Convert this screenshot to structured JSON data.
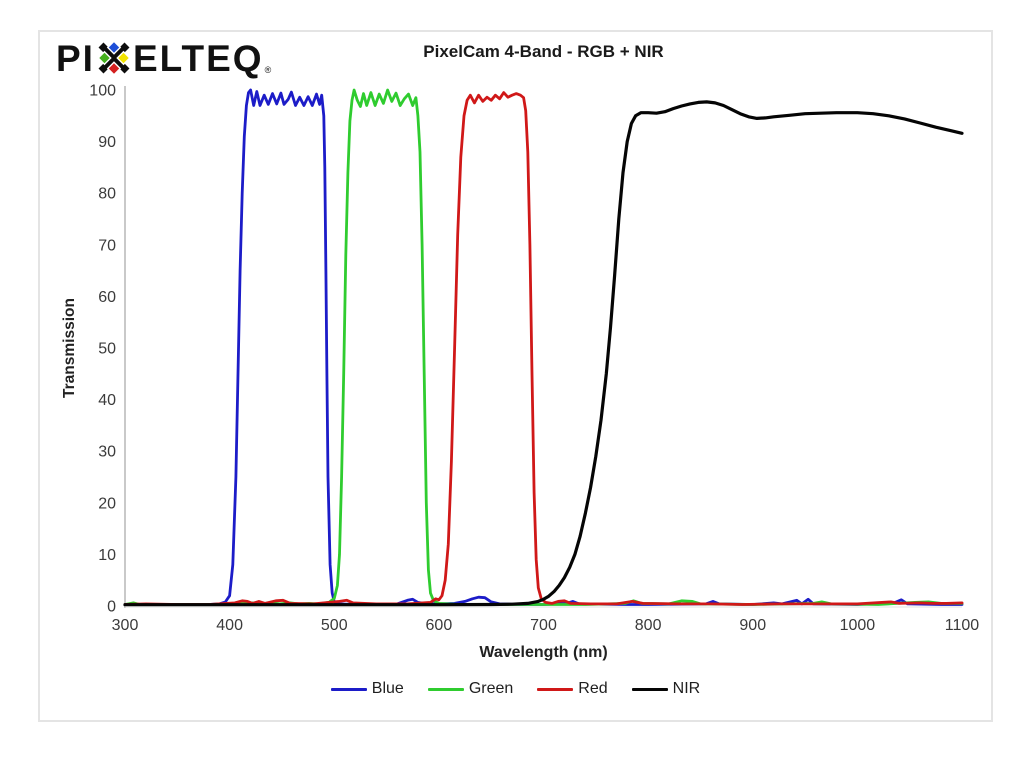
{
  "logo": {
    "prefix": "PI",
    "suffix": "ELTEQ",
    "registered": "®",
    "icon_colors": {
      "top": "#1e4fd8",
      "left": "#46b01e",
      "right": "#f2e300",
      "bottom": "#d42020",
      "x": "#0d0d0d"
    }
  },
  "chart_data": {
    "type": "line",
    "title": "PixelCam 4-Band - RGB + NIR",
    "xlabel": "Wavelength (nm)",
    "ylabel": "Transmission",
    "xlim": [
      300,
      1100
    ],
    "ylim": [
      0,
      100
    ],
    "xticks": [
      300,
      400,
      500,
      600,
      700,
      800,
      900,
      1000,
      1100
    ],
    "yticks": [
      0,
      10,
      20,
      30,
      40,
      50,
      60,
      70,
      80,
      90,
      100
    ],
    "grid": false,
    "legend_position": "bottom",
    "axis_color": "#c9c9c9",
    "tick_label_color": "#3b3b3b",
    "series": [
      {
        "name": "Blue",
        "color": "#1c1cc8",
        "width": 2.8,
        "points": [
          [
            300,
            0.3
          ],
          [
            320,
            0.3
          ],
          [
            340,
            0.3
          ],
          [
            360,
            0.3
          ],
          [
            380,
            0.3
          ],
          [
            390,
            0.4
          ],
          [
            396,
            0.8
          ],
          [
            400,
            2
          ],
          [
            403,
            8
          ],
          [
            406,
            25
          ],
          [
            408,
            45
          ],
          [
            410,
            65
          ],
          [
            412,
            80
          ],
          [
            414,
            91
          ],
          [
            416,
            97
          ],
          [
            418,
            99.5
          ],
          [
            420,
            100
          ],
          [
            423,
            97
          ],
          [
            426,
            99.7
          ],
          [
            429,
            97
          ],
          [
            433,
            99
          ],
          [
            437,
            97.2
          ],
          [
            441,
            99.3
          ],
          [
            445,
            97.3
          ],
          [
            449,
            99.4
          ],
          [
            452,
            97.2
          ],
          [
            456,
            98.2
          ],
          [
            459,
            99.6
          ],
          [
            463,
            97
          ],
          [
            467,
            98.6
          ],
          [
            471,
            97
          ],
          [
            475,
            98.7
          ],
          [
            479,
            97
          ],
          [
            483,
            99.2
          ],
          [
            486,
            97.2
          ],
          [
            488,
            99
          ],
          [
            490,
            95
          ],
          [
            491,
            85
          ],
          [
            492,
            65
          ],
          [
            493,
            45
          ],
          [
            494,
            25
          ],
          [
            496,
            8
          ],
          [
            498,
            2.5
          ],
          [
            500,
            0.8
          ],
          [
            505,
            0.4
          ],
          [
            520,
            0.3
          ],
          [
            545,
            0.3
          ],
          [
            560,
            0.4
          ],
          [
            570,
            1.1
          ],
          [
            575,
            1.3
          ],
          [
            580,
            0.7
          ],
          [
            588,
            0.4
          ],
          [
            600,
            0.4
          ],
          [
            615,
            0.5
          ],
          [
            625,
            0.9
          ],
          [
            632,
            1.4
          ],
          [
            638,
            1.7
          ],
          [
            644,
            1.6
          ],
          [
            650,
            0.8
          ],
          [
            658,
            0.4
          ],
          [
            680,
            0.3
          ],
          [
            700,
            0.3
          ],
          [
            722,
            0.5
          ],
          [
            728,
            0.9
          ],
          [
            734,
            0.4
          ],
          [
            780,
            0.3
          ],
          [
            800,
            0.3
          ],
          [
            855,
            0.4
          ],
          [
            862,
            0.9
          ],
          [
            868,
            0.4
          ],
          [
            900,
            0.3
          ],
          [
            920,
            0.6
          ],
          [
            928,
            0.4
          ],
          [
            942,
            1.1
          ],
          [
            947,
            0.4
          ],
          [
            953,
            1.3
          ],
          [
            958,
            0.4
          ],
          [
            1000,
            0.3
          ],
          [
            1035,
            0.6
          ],
          [
            1042,
            1.2
          ],
          [
            1048,
            0.4
          ],
          [
            1080,
            0.3
          ],
          [
            1100,
            0.3
          ]
        ]
      },
      {
        "name": "Green",
        "color": "#2fcc2f",
        "width": 2.8,
        "points": [
          [
            300,
            0.3
          ],
          [
            308,
            0.6
          ],
          [
            314,
            0.3
          ],
          [
            340,
            0.3
          ],
          [
            380,
            0.3
          ],
          [
            415,
            0.5
          ],
          [
            422,
            0.6
          ],
          [
            428,
            0.4
          ],
          [
            440,
            0.6
          ],
          [
            448,
            0.4
          ],
          [
            458,
            0.6
          ],
          [
            466,
            0.4
          ],
          [
            476,
            0.5
          ],
          [
            485,
            0.4
          ],
          [
            495,
            0.7
          ],
          [
            500,
            1.5
          ],
          [
            503,
            4
          ],
          [
            505,
            10
          ],
          [
            507,
            25
          ],
          [
            509,
            45
          ],
          [
            511,
            68
          ],
          [
            513,
            84
          ],
          [
            515,
            94
          ],
          [
            517,
            98
          ],
          [
            519,
            100
          ],
          [
            522,
            98
          ],
          [
            525,
            96.8
          ],
          [
            528,
            99.3
          ],
          [
            531,
            97
          ],
          [
            535,
            99.5
          ],
          [
            539,
            97
          ],
          [
            543,
            99.2
          ],
          [
            547,
            97.4
          ],
          [
            551,
            100
          ],
          [
            555,
            97.8
          ],
          [
            559,
            99.4
          ],
          [
            563,
            97
          ],
          [
            567,
            98.3
          ],
          [
            571,
            99.2
          ],
          [
            575,
            97
          ],
          [
            578,
            98.5
          ],
          [
            580,
            95
          ],
          [
            582,
            88
          ],
          [
            584,
            70
          ],
          [
            586,
            45
          ],
          [
            588,
            20
          ],
          [
            590,
            7
          ],
          [
            592,
            2.5
          ],
          [
            595,
            1
          ],
          [
            600,
            0.5
          ],
          [
            620,
            0.3
          ],
          [
            660,
            0.3
          ],
          [
            700,
            0.3
          ],
          [
            740,
            0.3
          ],
          [
            778,
            0.5
          ],
          [
            786,
            1
          ],
          [
            794,
            0.5
          ],
          [
            820,
            0.4
          ],
          [
            832,
            1
          ],
          [
            842,
            0.9
          ],
          [
            850,
            0.4
          ],
          [
            900,
            0.3
          ],
          [
            958,
            0.5
          ],
          [
            966,
            0.8
          ],
          [
            975,
            0.4
          ],
          [
            1020,
            0.3
          ],
          [
            1055,
            0.7
          ],
          [
            1068,
            0.8
          ],
          [
            1080,
            0.5
          ],
          [
            1100,
            0.5
          ]
        ]
      },
      {
        "name": "Red",
        "color": "#d01818",
        "width": 2.8,
        "points": [
          [
            300,
            0.3
          ],
          [
            320,
            0.4
          ],
          [
            350,
            0.3
          ],
          [
            380,
            0.3
          ],
          [
            405,
            0.6
          ],
          [
            412,
            1
          ],
          [
            417,
            0.9
          ],
          [
            422,
            0.5
          ],
          [
            428,
            0.9
          ],
          [
            434,
            0.5
          ],
          [
            444,
            1
          ],
          [
            451,
            1.1
          ],
          [
            458,
            0.5
          ],
          [
            480,
            0.4
          ],
          [
            505,
            0.9
          ],
          [
            512,
            1.1
          ],
          [
            518,
            0.6
          ],
          [
            540,
            0.4
          ],
          [
            570,
            0.4
          ],
          [
            592,
            0.7
          ],
          [
            597,
            1.4
          ],
          [
            600,
            1.2
          ],
          [
            603,
            2
          ],
          [
            606,
            5
          ],
          [
            609,
            12
          ],
          [
            612,
            28
          ],
          [
            615,
            50
          ],
          [
            618,
            72
          ],
          [
            621,
            87
          ],
          [
            624,
            95
          ],
          [
            627,
            98
          ],
          [
            630,
            99
          ],
          [
            634,
            97.5
          ],
          [
            638,
            99
          ],
          [
            642,
            97.8
          ],
          [
            646,
            98.6
          ],
          [
            650,
            98
          ],
          [
            654,
            99
          ],
          [
            658,
            98.3
          ],
          [
            662,
            99.5
          ],
          [
            666,
            98.6
          ],
          [
            670,
            99
          ],
          [
            674,
            99.3
          ],
          [
            678,
            99
          ],
          [
            681,
            98.5
          ],
          [
            683,
            96
          ],
          [
            685,
            88
          ],
          [
            687,
            70
          ],
          [
            689,
            45
          ],
          [
            691,
            22
          ],
          [
            693,
            9
          ],
          [
            695,
            3.5
          ],
          [
            698,
            1.3
          ],
          [
            702,
            0.7
          ],
          [
            708,
            0.5
          ],
          [
            714,
            0.9
          ],
          [
            720,
            1
          ],
          [
            726,
            0.5
          ],
          [
            745,
            0.4
          ],
          [
            770,
            0.4
          ],
          [
            785,
            0.9
          ],
          [
            795,
            0.5
          ],
          [
            830,
            0.4
          ],
          [
            860,
            0.4
          ],
          [
            890,
            0.3
          ],
          [
            925,
            0.4
          ],
          [
            960,
            0.4
          ],
          [
            1000,
            0.4
          ],
          [
            1032,
            0.8
          ],
          [
            1040,
            0.5
          ],
          [
            1060,
            0.6
          ],
          [
            1072,
            0.5
          ],
          [
            1085,
            0.5
          ],
          [
            1100,
            0.6
          ]
        ]
      },
      {
        "name": "NIR",
        "color": "#050505",
        "width": 3.2,
        "points": [
          [
            300,
            0.25
          ],
          [
            350,
            0.25
          ],
          [
            400,
            0.25
          ],
          [
            450,
            0.25
          ],
          [
            500,
            0.25
          ],
          [
            550,
            0.25
          ],
          [
            600,
            0.25
          ],
          [
            650,
            0.3
          ],
          [
            670,
            0.35
          ],
          [
            685,
            0.5
          ],
          [
            695,
            0.9
          ],
          [
            700,
            1.3
          ],
          [
            705,
            1.9
          ],
          [
            710,
            2.8
          ],
          [
            715,
            4
          ],
          [
            720,
            5.5
          ],
          [
            725,
            7.5
          ],
          [
            730,
            10
          ],
          [
            735,
            13.5
          ],
          [
            740,
            18
          ],
          [
            745,
            23
          ],
          [
            750,
            29
          ],
          [
            755,
            36
          ],
          [
            760,
            45
          ],
          [
            764,
            54
          ],
          [
            768,
            64
          ],
          [
            772,
            75
          ],
          [
            776,
            84
          ],
          [
            780,
            90
          ],
          [
            784,
            93.5
          ],
          [
            788,
            95
          ],
          [
            793,
            95.6
          ],
          [
            800,
            95.6
          ],
          [
            808,
            95.5
          ],
          [
            816,
            95.8
          ],
          [
            824,
            96.4
          ],
          [
            832,
            96.9
          ],
          [
            840,
            97.3
          ],
          [
            848,
            97.6
          ],
          [
            856,
            97.7
          ],
          [
            864,
            97.5
          ],
          [
            872,
            97
          ],
          [
            880,
            96.2
          ],
          [
            888,
            95.4
          ],
          [
            896,
            94.8
          ],
          [
            904,
            94.5
          ],
          [
            912,
            94.6
          ],
          [
            920,
            94.8
          ],
          [
            935,
            95.1
          ],
          [
            950,
            95.4
          ],
          [
            965,
            95.5
          ],
          [
            980,
            95.6
          ],
          [
            1000,
            95.6
          ],
          [
            1015,
            95.4
          ],
          [
            1030,
            95
          ],
          [
            1045,
            94.4
          ],
          [
            1060,
            93.6
          ],
          [
            1075,
            92.8
          ],
          [
            1090,
            92.1
          ],
          [
            1100,
            91.6
          ]
        ]
      }
    ]
  }
}
